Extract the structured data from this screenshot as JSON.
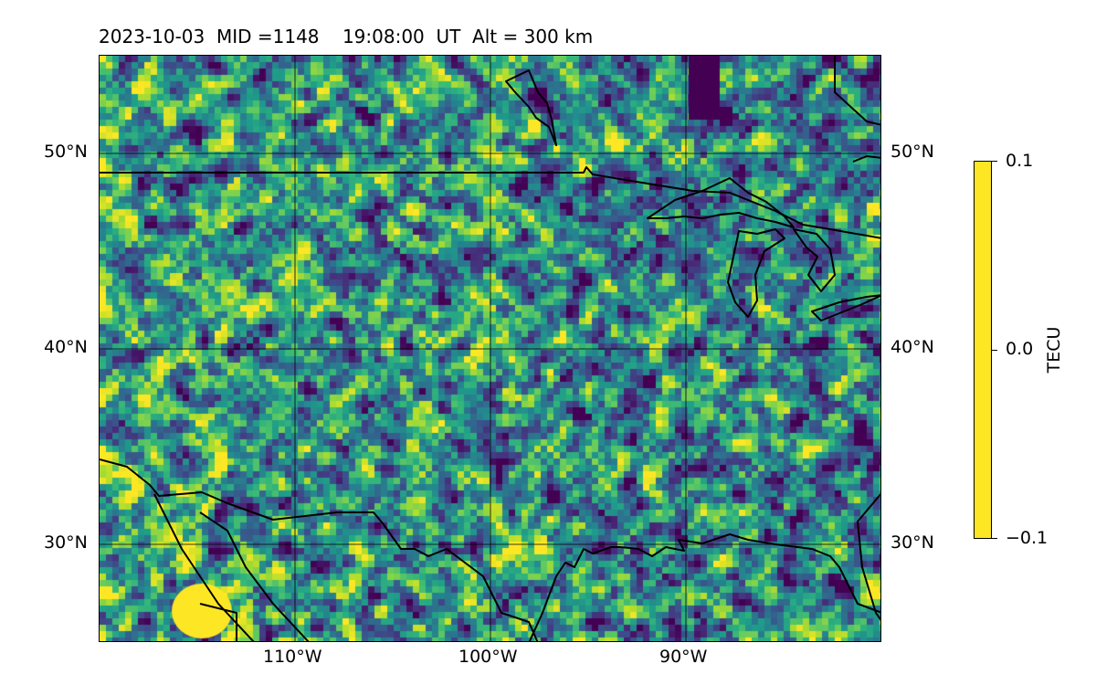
{
  "title": "2023-10-03  MID =1148    19:08:00  UT  Alt = 300 km",
  "map": {
    "projection": "equirectangular",
    "lon_range": [
      -120,
      -80
    ],
    "lat_range": [
      25,
      55
    ],
    "lat_labels": [
      "50°N",
      "40°N",
      "30°N"
    ],
    "lon_labels": [
      "110°W",
      "100°W",
      "90°W"
    ],
    "grid": true,
    "colormap": "viridis",
    "coastline_color": "#000000"
  },
  "colorbar": {
    "label": "TECU",
    "ticks": [
      "0.1",
      "0.0",
      "−0.1"
    ],
    "vmin": -0.1,
    "vmax": 0.1
  }
}
